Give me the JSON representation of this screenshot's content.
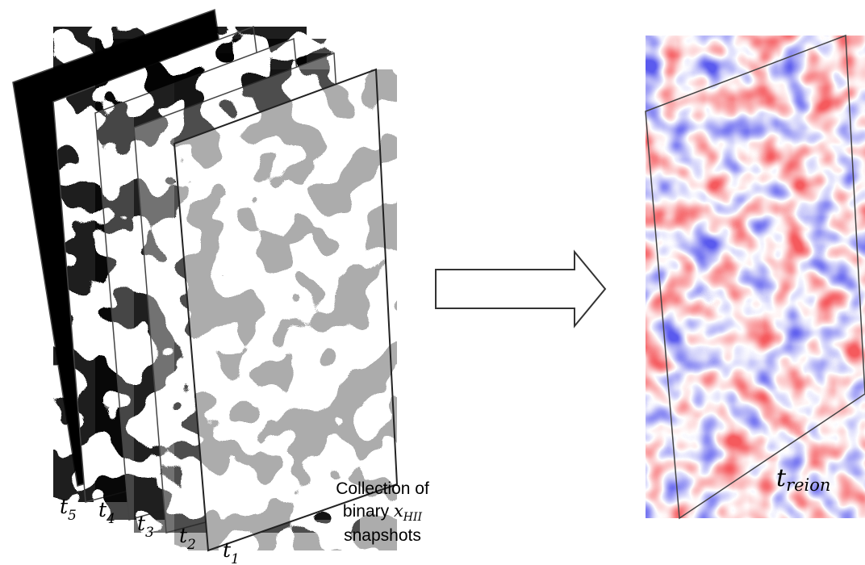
{
  "snapshots": {
    "labels": [
      {
        "t": "t",
        "sub": "5"
      },
      {
        "t": "t",
        "sub": "4"
      },
      {
        "t": "t",
        "sub": "3"
      },
      {
        "t": "t",
        "sub": "2"
      },
      {
        "t": "t",
        "sub": "1"
      }
    ],
    "caption": {
      "line1": "Collection of",
      "line2_prefix": "binary ",
      "line2_var": "x",
      "line2_sub": "HII",
      "line3": "snapshots"
    }
  },
  "arrow": {
    "icon": "right-arrow-icon"
  },
  "result": {
    "label_t": "t",
    "label_sub": "reion"
  },
  "colors": {
    "ionized": "#000000",
    "neutral": "#ffffff",
    "late": "#e8191b",
    "early": "#1a1ad8"
  }
}
